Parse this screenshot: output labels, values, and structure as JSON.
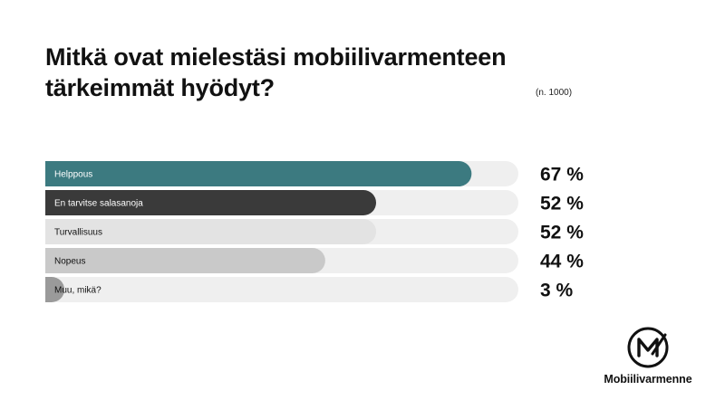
{
  "chart_data": {
    "type": "bar",
    "orientation": "horizontal",
    "title": "Mitkä ovat mielestäsi mobiilivarmenteen tärkeimmät hyödyt?",
    "sample_note": "(n. 1000)",
    "xlim": [
      0,
      100
    ],
    "unit": "%",
    "categories": [
      "Helppous",
      "En tarvitse salasanoja",
      "Turvallisuus",
      "Nopeus",
      "Muu, mikä?"
    ],
    "values": [
      67,
      52,
      52,
      44,
      3
    ],
    "value_labels": [
      "67 %",
      "52 %",
      "52 %",
      "44 %",
      "3 %"
    ],
    "colors": [
      "#3c7a80",
      "#3a3a3a",
      "#e3e3e3",
      "#c9c9c9",
      "#9a9a9a"
    ],
    "track_color": "#efefef",
    "grid": false,
    "legend": false
  },
  "logo": {
    "text": "Mobiilivarmenne",
    "letter": "M",
    "icon": "mobiilivarmenne-logo-icon"
  }
}
